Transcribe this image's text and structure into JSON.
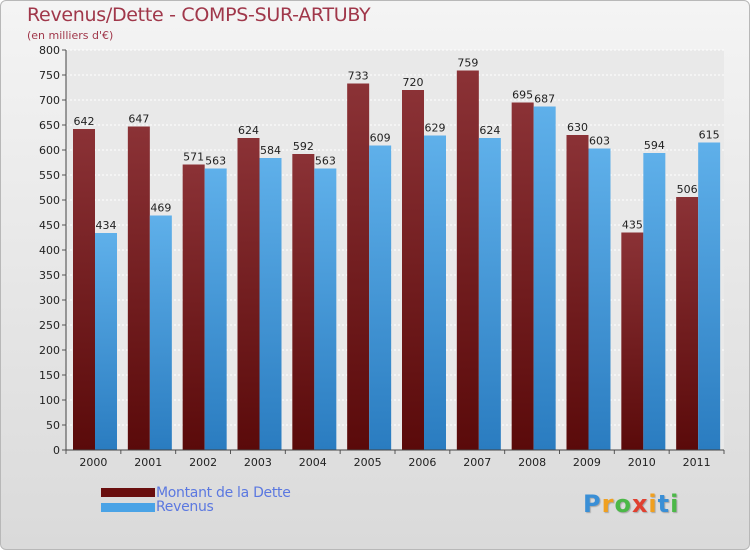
{
  "title": "Revenus/Dette - COMPS-SUR-ARTUBY",
  "subtitle": "(en milliers d'€)",
  "colors": {
    "title": "#a0374a",
    "dette_top": "#8b3236",
    "dette_bottom": "#5a0a0a",
    "revenus_top": "#5fb0ea",
    "revenus_bottom": "#2a7cc0",
    "legend_text": "#5b78e0"
  },
  "legend": {
    "items": [
      {
        "label": "Montant de la Dette",
        "color": "#6a0f0f"
      },
      {
        "label": "Revenus",
        "color": "#4aa3e6"
      }
    ]
  },
  "logo": {
    "letters": [
      {
        "ch": "P",
        "color": "#3a8fd6"
      },
      {
        "ch": "r",
        "color": "#f0a020"
      },
      {
        "ch": "o",
        "color": "#4cb848"
      },
      {
        "ch": "x",
        "color": "#e04030"
      },
      {
        "ch": "i",
        "color": "#f0a020"
      },
      {
        "ch": "t",
        "color": "#3a8fd6"
      },
      {
        "ch": "i",
        "color": "#4cb848"
      }
    ]
  },
  "chart_data": {
    "type": "bar",
    "title": "Revenus/Dette - COMPS-SUR-ARTUBY",
    "ylabel": "(en milliers d'€)",
    "categories": [
      "2000",
      "2001",
      "2002",
      "2003",
      "2004",
      "2005",
      "2006",
      "2007",
      "2008",
      "2009",
      "2010",
      "2011"
    ],
    "series": [
      {
        "name": "Montant de la Dette",
        "values": [
          642,
          647,
          571,
          624,
          592,
          733,
          720,
          759,
          695,
          630,
          435,
          506
        ]
      },
      {
        "name": "Revenus",
        "values": [
          434,
          469,
          563,
          584,
          563,
          609,
          629,
          624,
          687,
          603,
          594,
          615
        ]
      }
    ],
    "ylim": [
      0,
      800
    ],
    "ytick_step": 50,
    "grid": true,
    "legend_position": "bottom-left"
  }
}
